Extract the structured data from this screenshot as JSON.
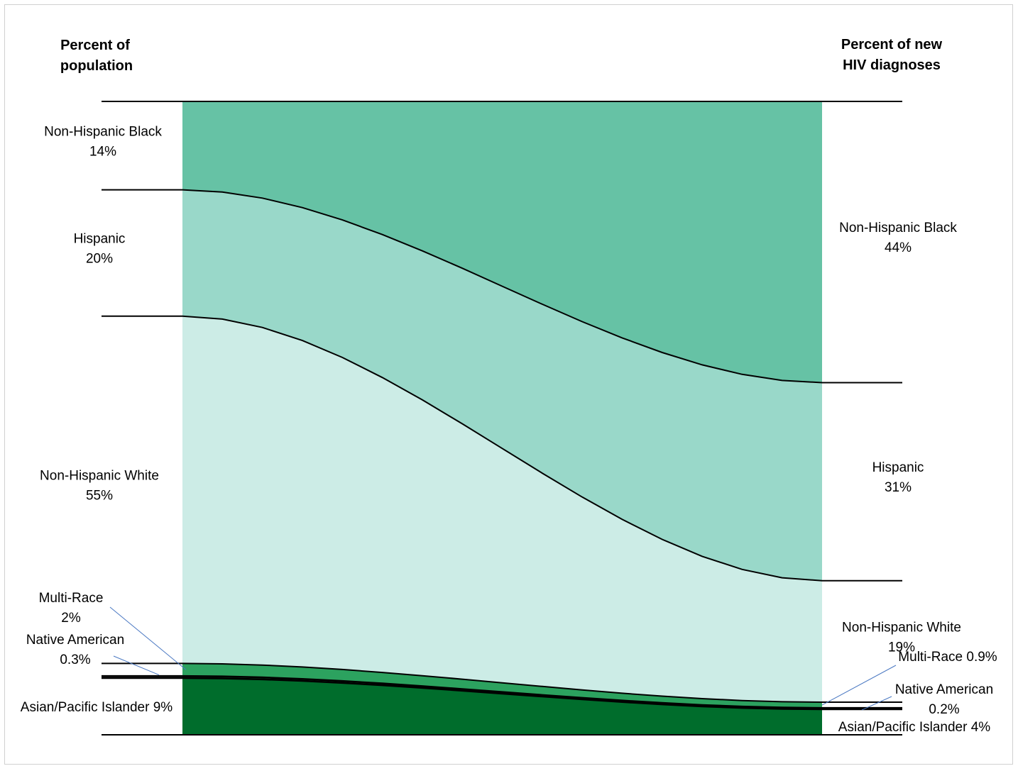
{
  "chart_data": {
    "type": "area",
    "left_title": [
      "Percent of",
      "population"
    ],
    "right_title": [
      "Percent of new",
      "HIV diagnoses"
    ],
    "categories": [
      "Percent of population",
      "Percent of new HIV diagnoses"
    ],
    "series": [
      {
        "name": "Non-Hispanic Black",
        "values": [
          14,
          44
        ],
        "color": "#66c2a5",
        "left_label": [
          "Non-Hispanic Black",
          "14%"
        ],
        "right_label": [
          "Non-Hispanic Black",
          "44%"
        ]
      },
      {
        "name": "Hispanic",
        "values": [
          20,
          31
        ],
        "color": "#99d8c9",
        "left_label": [
          "Hispanic",
          "20%"
        ],
        "right_label": [
          "Hispanic",
          "31%"
        ]
      },
      {
        "name": "Non-Hispanic White",
        "values": [
          55,
          19
        ],
        "color": "#ccece6",
        "left_label": [
          "Non-Hispanic White",
          "55%"
        ],
        "right_label": [
          "Non-Hispanic White",
          "19%"
        ]
      },
      {
        "name": "Multi-Race",
        "values": [
          2,
          0.9
        ],
        "color": "#2ca25f",
        "left_label": [
          "Multi-Race",
          "2%"
        ],
        "right_label": [
          "Multi-Race 0.9%"
        ]
      },
      {
        "name": "Native American",
        "values": [
          0.3,
          0.2
        ],
        "color": "#1a8a47",
        "left_label": [
          "Native American",
          "0.3%"
        ],
        "right_label": [
          "Native American",
          "0.2%"
        ]
      },
      {
        "name": "Asian/Pacific Islander",
        "values": [
          9,
          4
        ],
        "color": "#006d2c",
        "left_label": [
          "Asian/Pacific Islander 9%"
        ],
        "right_label": [
          "Asian/Pacific Islander 4%"
        ]
      }
    ],
    "ylim": [
      0,
      100
    ],
    "legend": "none",
    "grid": false
  }
}
